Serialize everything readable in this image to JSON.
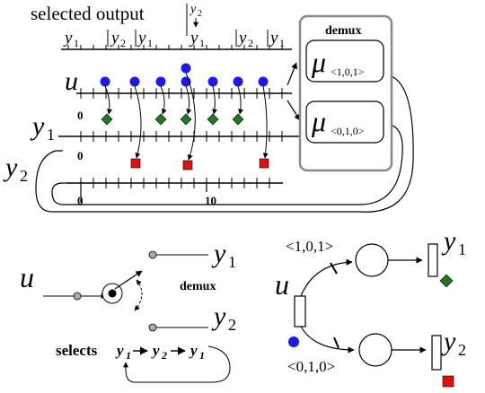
{
  "top": {
    "selected_output_label": "selected output",
    "output_sequence": [
      {
        "var": "y",
        "sub": "1"
      },
      {
        "var": "y",
        "sub": "2"
      },
      {
        "var": "y",
        "sub": "1"
      },
      {
        "var": "y",
        "sub": "2"
      },
      {
        "var": "y",
        "sub": "1"
      },
      {
        "var": "y",
        "sub": "2"
      },
      {
        "var": "y",
        "sub": "1"
      }
    ],
    "tape_labels": {
      "u": "u",
      "y1_var": "y",
      "y1_sub": "1",
      "y2_var": "y",
      "y2_sub": "2"
    },
    "ticks": {
      "zero_a": "0",
      "zero_b": "0",
      "zero_c": "0",
      "ten": "10"
    },
    "demux_box": {
      "title": "demux",
      "mu_1": {
        "symbol": "μ",
        "sub": "<1,0,1>"
      },
      "mu_2": {
        "symbol": "μ",
        "sub": "<0,1,0>"
      }
    }
  },
  "bottom_left": {
    "input_label": "u",
    "out1": {
      "var": "y",
      "sub": "1"
    },
    "out2": {
      "var": "y",
      "sub": "2"
    },
    "demux_label": "demux",
    "selects_prefix": "selects",
    "selects_seq": [
      {
        "var": "y",
        "sub": "1"
      },
      {
        "var": "y",
        "sub": "2"
      },
      {
        "var": "y",
        "sub": "1"
      }
    ]
  },
  "bottom_right": {
    "input_label": "u",
    "place_top_label": "<1,0,1>",
    "place_bottom_label": "<0,1,0>",
    "out1": {
      "var": "y",
      "sub": "1"
    },
    "out2": {
      "var": "y",
      "sub": "2"
    }
  },
  "colors": {
    "event_u": "#1a1aee",
    "event_y1": "#1f7a1f",
    "event_y2": "#e01010",
    "box_border": "#888888"
  }
}
